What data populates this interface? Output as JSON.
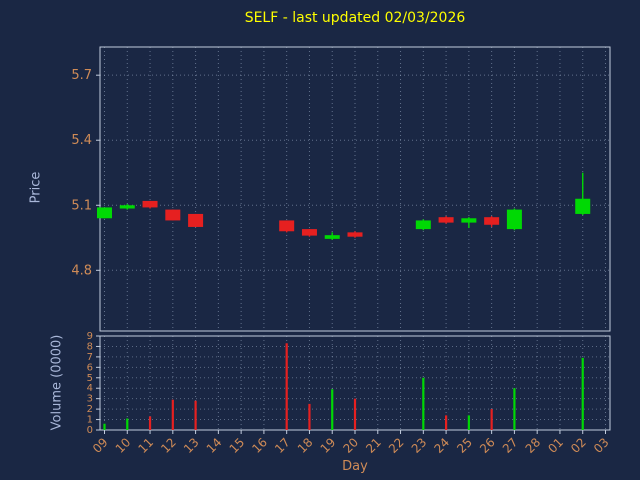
{
  "title": "SELF - last updated 02/03/2026",
  "axes": {
    "price_label": "Price",
    "volume_label": "Volume (0000)",
    "x_label": "Day"
  },
  "colors": {
    "background": "#1a2744",
    "title": "#ffff00",
    "axis_label": "#a9b7d9",
    "tick_label": "#cf8b57",
    "grid": "#aabbd4",
    "spine": "#c3cdde",
    "up": "#00d904",
    "down": "#e62020"
  },
  "chart_data": {
    "type": "candlestick",
    "title": "SELF - last updated 02/03/2026",
    "xlabel": "Day",
    "ylabel_price": "Price",
    "ylabel_volume": "Volume (0000)",
    "x_categories": [
      "09",
      "10",
      "11",
      "12",
      "13",
      "14",
      "15",
      "16",
      "17",
      "18",
      "19",
      "20",
      "21",
      "22",
      "23",
      "24",
      "25",
      "26",
      "27",
      "28",
      "01",
      "02",
      "03"
    ],
    "price_ticks": [
      4.8,
      5.1,
      5.4,
      5.7
    ],
    "price_ylim": [
      4.52,
      5.83
    ],
    "volume_ticks": [
      0,
      1,
      2,
      3,
      4,
      5,
      6,
      7,
      8,
      9
    ],
    "volume_ylim": [
      0,
      9
    ],
    "legend": "none",
    "grid": "dotted",
    "series": [
      {
        "day": "09",
        "open": 5.04,
        "high": 5.09,
        "low": 5.04,
        "close": 5.09,
        "volume": 0.6
      },
      {
        "day": "10",
        "open": 5.085,
        "high": 5.105,
        "low": 5.08,
        "close": 5.1,
        "volume": 1.1
      },
      {
        "day": "11",
        "open": 5.12,
        "high": 5.12,
        "low": 5.085,
        "close": 5.09,
        "volume": 1.3
      },
      {
        "day": "12",
        "open": 5.08,
        "high": 5.08,
        "low": 5.03,
        "close": 5.03,
        "volume": 2.9
      },
      {
        "day": "13",
        "open": 5.06,
        "high": 5.06,
        "low": 5.0,
        "close": 5.0,
        "volume": 2.8
      },
      {
        "day": "17",
        "open": 5.03,
        "high": 5.03,
        "low": 4.975,
        "close": 4.98,
        "volume": 8.3
      },
      {
        "day": "18",
        "open": 4.99,
        "high": 4.99,
        "low": 4.955,
        "close": 4.96,
        "volume": 2.5
      },
      {
        "day": "19",
        "open": 4.945,
        "high": 4.975,
        "low": 4.94,
        "close": 4.962,
        "volume": 3.9
      },
      {
        "day": "20",
        "open": 4.975,
        "high": 4.98,
        "low": 4.95,
        "close": 4.955,
        "volume": 3.0
      },
      {
        "day": "23",
        "open": 4.99,
        "high": 5.035,
        "low": 4.985,
        "close": 5.03,
        "volume": 5.0
      },
      {
        "day": "24",
        "open": 5.045,
        "high": 5.05,
        "low": 5.015,
        "close": 5.02,
        "volume": 1.4
      },
      {
        "day": "25",
        "open": 5.02,
        "high": 5.045,
        "low": 4.995,
        "close": 5.04,
        "volume": 1.4
      },
      {
        "day": "26",
        "open": 5.045,
        "high": 5.05,
        "low": 5.0,
        "close": 5.01,
        "volume": 2.0
      },
      {
        "day": "27",
        "open": 4.99,
        "high": 5.085,
        "low": 4.985,
        "close": 5.08,
        "volume": 4.0
      },
      {
        "day": "02",
        "open": 5.06,
        "high": 5.25,
        "low": 5.055,
        "close": 5.13,
        "volume": 6.9
      }
    ]
  }
}
